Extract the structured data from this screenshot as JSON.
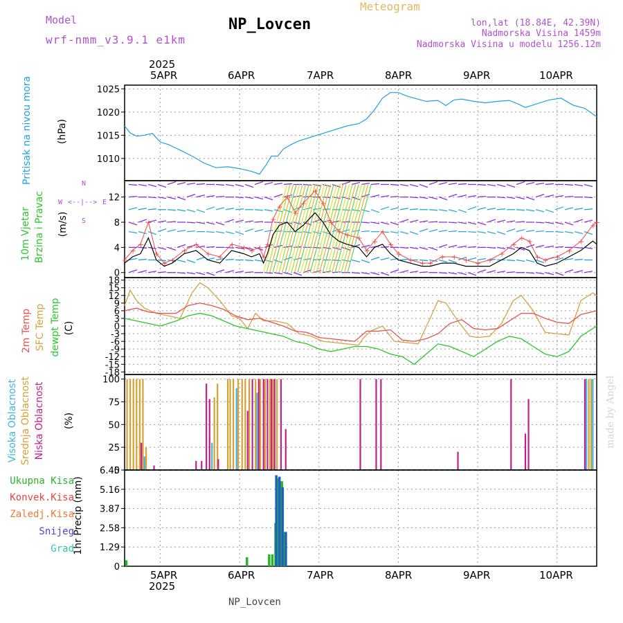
{
  "header": {
    "model_label": "Model",
    "model_name": "wrf-nmm_v3.9.1 e1km",
    "station": "NP_Lovcen",
    "meteogram_label": "Meteogram",
    "lonlat": "lon,lat (18.84E, 42.39N)",
    "altitude": "Nadmorska Visina 1459m",
    "model_altitude": "Nadmorska Visina u modelu 1256.12m"
  },
  "footer": {
    "station": "NP_Lovcen"
  },
  "watermark": "made by Angel",
  "top_axis": {
    "year": "2025",
    "labels": [
      "5APR",
      "6APR",
      "7APR",
      "8APR",
      "9APR",
      "10APR"
    ]
  },
  "bottom_axis": {
    "year": "2025",
    "labels": [
      "5APR",
      "6APR",
      "7APR",
      "8APR",
      "9APR",
      "10APR"
    ]
  },
  "panels": {
    "pressure": {
      "label": "Pritisak na nivou mora",
      "unit": "(hPa)"
    },
    "wind": {
      "label_line1": "10m Vjetar",
      "label_line2": "Brzina i Pravac",
      "unit": "(m/s)",
      "compass_n": "N",
      "compass_w": "W",
      "compass_e": "E",
      "compass_s": "S"
    },
    "temp": {
      "label_1": "2m Temp",
      "label_2": "SFC Temp",
      "label_3": "dewpt Temp",
      "unit": "(C)"
    },
    "cloud": {
      "label_1": "Visoka Oblacnost",
      "label_2": "Srednja Oblacnost",
      "label_3": "Niska Oblacnost",
      "unit": "(%)"
    },
    "precip": {
      "legend": [
        "Ukupna Kisa",
        "Konvek.Kisa",
        "Zaledj.Kisa",
        "Snijeg",
        "Grad"
      ],
      "unit": "1hr Precip (mm)"
    }
  },
  "colors": {
    "pressure": "#1ea0e6",
    "wind_speed": "#000000",
    "wind_gust": "#f04848",
    "temp2m": "#e85050",
    "sfc_temp": "#d8a040",
    "dewpoint": "#28c828",
    "cloud_high": "#3cb4e6",
    "cloud_mid": "#d8a030",
    "cloud_low": "#c0208c",
    "precip_total": "#28b428",
    "precip_conv": "#f04040",
    "precip_freezing": "#f07830",
    "precip_snow": "#4848d8",
    "precip_hail": "#28c8b4",
    "label_purple": "#b050d0",
    "label_gold": "#e0b860"
  },
  "chart_data": [
    {
      "type": "line",
      "panel": "pressure",
      "title": "Pritisak na nivou mora",
      "ylabel": "(hPa)",
      "x_unit": "days since 4APR 2025 00UTC",
      "x_ticks": [
        1,
        2,
        3,
        4,
        5,
        6
      ],
      "x_tick_labels": [
        "5APR",
        "6APR",
        "7APR",
        "8APR",
        "9APR",
        "10APR"
      ],
      "xlim": [
        0.55,
        6.5
      ],
      "yticks": [
        1010,
        1015,
        1020,
        1025
      ],
      "ylim": [
        1005.2,
        1025.8
      ],
      "series": [
        {
          "name": "MSLP",
          "x": [
            0.55,
            0.62,
            0.7,
            0.8,
            0.9,
            1.0,
            1.1,
            1.25,
            1.4,
            1.55,
            1.7,
            1.85,
            2.0,
            2.15,
            2.25,
            2.33,
            2.4,
            2.48,
            2.55,
            2.65,
            2.75,
            2.9,
            3.05,
            3.2,
            3.35,
            3.5,
            3.6,
            3.7,
            3.8,
            3.9,
            4.0,
            4.1,
            4.2,
            4.35,
            4.5,
            4.6,
            4.7,
            4.8,
            4.95,
            5.1,
            5.25,
            5.4,
            5.5,
            5.6,
            5.75,
            5.9,
            6.05,
            6.2,
            6.35,
            6.5
          ],
          "values": [
            1017.0,
            1015.5,
            1014.8,
            1015.0,
            1015.4,
            1013.5,
            1013.0,
            1011.8,
            1010.5,
            1009.0,
            1008.0,
            1008.2,
            1007.8,
            1007.2,
            1006.6,
            1008.5,
            1010.5,
            1010.5,
            1012.0,
            1013.0,
            1013.8,
            1014.6,
            1015.4,
            1016.2,
            1017.0,
            1017.5,
            1018.5,
            1020.5,
            1023.0,
            1024.2,
            1024.2,
            1023.5,
            1023.0,
            1022.3,
            1022.5,
            1021.4,
            1022.6,
            1022.8,
            1022.3,
            1022.0,
            1022.3,
            1022.5,
            1021.8,
            1021.0,
            1021.8,
            1022.6,
            1023.0,
            1021.5,
            1020.8,
            1019.0
          ]
        }
      ]
    },
    {
      "type": "line",
      "panel": "wind",
      "ylabel": "(m/s)",
      "xlim": [
        0.55,
        6.5
      ],
      "yticks": [
        0,
        4,
        8,
        12
      ],
      "ylim": [
        -0.8,
        14.6
      ],
      "series": [
        {
          "name": "10m wind speed",
          "x": [
            0.55,
            0.65,
            0.75,
            0.85,
            0.95,
            1.05,
            1.15,
            1.3,
            1.45,
            1.6,
            1.75,
            1.9,
            2.05,
            2.15,
            2.25,
            2.3,
            2.35,
            2.42,
            2.5,
            2.6,
            2.7,
            2.8,
            2.95,
            3.05,
            3.15,
            3.25,
            3.35,
            3.5,
            3.6,
            3.7,
            3.8,
            3.9,
            4.0,
            4.15,
            4.3,
            4.4,
            4.55,
            4.7,
            4.85,
            5.0,
            5.15,
            5.3,
            5.45,
            5.55,
            5.65,
            5.75,
            5.85,
            6.0,
            6.15,
            6.3,
            6.45,
            6.5
          ],
          "values": [
            1.5,
            2.5,
            3.0,
            5.5,
            2.0,
            1.0,
            1.5,
            3.0,
            3.5,
            2.0,
            1.5,
            3.5,
            3.0,
            2.5,
            3.0,
            1.5,
            3.0,
            6.0,
            7.5,
            8.0,
            6.5,
            7.5,
            9.5,
            8.0,
            6.0,
            5.0,
            4.5,
            4.0,
            2.5,
            4.0,
            4.5,
            3.0,
            2.0,
            1.5,
            1.0,
            1.0,
            1.5,
            1.5,
            1.0,
            1.0,
            1.0,
            2.0,
            3.0,
            4.0,
            3.5,
            1.5,
            1.0,
            1.5,
            2.5,
            3.5,
            5.0,
            4.5
          ]
        },
        {
          "name": "gust",
          "x": [
            0.55,
            0.65,
            0.75,
            0.85,
            0.95,
            1.05,
            1.15,
            1.3,
            1.45,
            1.6,
            1.75,
            1.9,
            2.05,
            2.15,
            2.25,
            2.3,
            2.35,
            2.42,
            2.5,
            2.6,
            2.7,
            2.8,
            2.95,
            3.05,
            3.15,
            3.25,
            3.35,
            3.5,
            3.6,
            3.7,
            3.8,
            3.9,
            4.0,
            4.15,
            4.3,
            4.4,
            4.55,
            4.7,
            4.85,
            5.0,
            5.15,
            5.3,
            5.45,
            5.55,
            5.65,
            5.75,
            5.85,
            6.0,
            6.15,
            6.3,
            6.45,
            6.5
          ],
          "values": [
            2.0,
            3.5,
            4.5,
            8.0,
            3.0,
            1.5,
            2.0,
            3.5,
            4.5,
            3.0,
            2.5,
            4.5,
            4.0,
            3.5,
            4.0,
            2.5,
            4.5,
            8.5,
            10.5,
            12.0,
            9.5,
            11.0,
            13.0,
            11.0,
            8.0,
            6.5,
            6.0,
            5.5,
            3.5,
            5.0,
            6.5,
            4.5,
            3.0,
            2.0,
            1.5,
            1.5,
            2.5,
            2.5,
            2.0,
            1.5,
            2.0,
            3.0,
            4.5,
            5.5,
            5.0,
            2.5,
            2.0,
            2.5,
            3.5,
            5.0,
            7.5,
            8.0
          ]
        }
      ]
    },
    {
      "type": "line",
      "panel": "temperature",
      "ylabel": "(C)",
      "xlim": [
        0.55,
        6.5
      ],
      "yticks": [
        -18,
        -15,
        -12,
        -9,
        -6,
        -3,
        0,
        3,
        6,
        9,
        12,
        15,
        18
      ],
      "ylim": [
        -19,
        19
      ],
      "series": [
        {
          "name": "2m Temp",
          "x": [
            0.55,
            0.7,
            0.85,
            1.0,
            1.2,
            1.35,
            1.5,
            1.65,
            1.8,
            1.95,
            2.1,
            2.25,
            2.4,
            2.55,
            2.7,
            2.85,
            3.0,
            3.15,
            3.3,
            3.45,
            3.6,
            3.75,
            3.9,
            4.05,
            4.2,
            4.35,
            4.5,
            4.65,
            4.8,
            4.95,
            5.1,
            5.25,
            5.4,
            5.55,
            5.7,
            5.85,
            6.0,
            6.15,
            6.3,
            6.5
          ],
          "values": [
            6,
            7,
            5.5,
            5,
            5,
            8,
            9,
            8,
            6.5,
            4,
            2.5,
            3,
            1.5,
            0,
            -2,
            -2.5,
            -4.5,
            -5,
            -5.5,
            -6,
            -2,
            -2,
            -1.5,
            -5.5,
            -6,
            -5,
            -3,
            1,
            2.5,
            -1,
            -1.5,
            -1,
            2,
            5,
            5,
            3,
            1.5,
            1,
            4.5,
            6
          ]
        },
        {
          "name": "SFC Temp",
          "x": [
            0.55,
            0.62,
            0.7,
            0.8,
            0.95,
            1.1,
            1.25,
            1.4,
            1.5,
            1.6,
            1.75,
            1.9,
            2.0,
            2.1,
            2.2,
            2.3,
            2.45,
            2.6,
            2.75,
            2.9,
            3.05,
            3.2,
            3.35,
            3.5,
            3.55,
            3.65,
            3.8,
            3.95,
            4.1,
            4.25,
            4.4,
            4.5,
            4.6,
            4.75,
            4.9,
            5.0,
            5.15,
            5.3,
            5.45,
            5.55,
            5.7,
            5.85,
            6.0,
            6.15,
            6.3,
            6.45,
            6.5
          ],
          "values": [
            8,
            14,
            10,
            7,
            5,
            4,
            3,
            13,
            17,
            15,
            10,
            4,
            3,
            -1,
            5,
            2,
            2,
            1,
            -3,
            -4,
            -6,
            -6.5,
            -7,
            -7.5,
            -5,
            -2,
            0,
            -6,
            -6.5,
            -7,
            3,
            10,
            9,
            2,
            -4,
            -4.5,
            -4,
            1,
            10,
            12,
            6,
            -2.5,
            -3,
            -3.5,
            10,
            13,
            12
          ]
        },
        {
          "name": "dewpt Temp",
          "x": [
            0.55,
            0.7,
            0.85,
            1.0,
            1.2,
            1.35,
            1.5,
            1.65,
            1.8,
            1.95,
            2.1,
            2.25,
            2.4,
            2.55,
            2.7,
            2.85,
            3.0,
            3.15,
            3.3,
            3.45,
            3.6,
            3.75,
            3.9,
            4.05,
            4.2,
            4.35,
            4.5,
            4.65,
            4.8,
            4.95,
            5.1,
            5.25,
            5.4,
            5.55,
            5.7,
            5.85,
            6.0,
            6.15,
            6.3,
            6.5
          ],
          "values": [
            3,
            2,
            1,
            0,
            2,
            4,
            5,
            4,
            2,
            0,
            -1,
            -2,
            -3,
            -4,
            -6,
            -7,
            -9,
            -10,
            -9,
            -8,
            -8,
            -9,
            -11,
            -12,
            -15,
            -11,
            -7,
            -8,
            -10,
            -12,
            -9,
            -6,
            -4,
            -5,
            -8,
            -11,
            -12,
            -10,
            -4,
            0
          ]
        }
      ]
    },
    {
      "type": "bar",
      "panel": "cloud",
      "ylabel": "(%)",
      "xlim": [
        0.55,
        6.5
      ],
      "yticks": [
        0,
        25,
        50,
        75,
        100
      ],
      "ylim": [
        0,
        105
      ],
      "series": [
        {
          "name": "Visoka Oblacnost",
          "x": [
            0.8,
            1.65,
            1.96,
            2.22,
            6.37,
            6.45
          ],
          "values": [
            15,
            30,
            90,
            85,
            100,
            100
          ]
        },
        {
          "name": "Srednja Oblacnost",
          "x": [
            0.58,
            0.62,
            0.66,
            0.7,
            0.74,
            0.78,
            0.82,
            1.62,
            1.68,
            1.72,
            1.85,
            1.88,
            1.92,
            1.98,
            2.03,
            2.07,
            2.12,
            2.2,
            2.26,
            2.32,
            2.38,
            2.42,
            2.47,
            6.4,
            6.43
          ],
          "values": [
            100,
            100,
            100,
            100,
            100,
            100,
            25,
            35,
            80,
            95,
            100,
            100,
            100,
            100,
            100,
            100,
            100,
            100,
            100,
            100,
            100,
            100,
            100,
            100,
            100
          ]
        },
        {
          "name": "Niska Oblacnost",
          "x": [
            0.76,
            0.92,
            1.45,
            1.52,
            1.58,
            1.62,
            1.73,
            2.1,
            2.16,
            2.24,
            2.3,
            2.35,
            2.4,
            2.44,
            2.52,
            2.58,
            3.52,
            3.72,
            3.78,
            4.75,
            5.42,
            5.6,
            5.64,
            6.35
          ],
          "values": [
            30,
            5,
            10,
            10,
            95,
            78,
            12,
            65,
            100,
            100,
            100,
            100,
            100,
            100,
            100,
            45,
            100,
            100,
            100,
            20,
            100,
            40,
            78,
            100
          ]
        }
      ]
    },
    {
      "type": "bar",
      "panel": "precip",
      "ylabel": "1hr Precip (mm)",
      "xlim": [
        0.55,
        6.5
      ],
      "yticks": [
        0,
        1.29,
        2.58,
        3.87,
        5.16,
        6.45
      ],
      "ylim": [
        0,
        6.45
      ],
      "series": [
        {
          "name": "Ukupna Kisa",
          "x": [
            0.57,
            2.09,
            2.37,
            2.41,
            2.45,
            2.49,
            2.53,
            2.57
          ],
          "values": [
            0.4,
            0.6,
            0.8,
            0.8,
            2.9,
            5.9,
            5.7,
            2.3
          ]
        },
        {
          "name": "Snijeg",
          "x": [
            2.46,
            2.5,
            2.54,
            2.58
          ],
          "values": [
            6.1,
            6.0,
            5.3,
            2.3
          ]
        }
      ]
    }
  ]
}
